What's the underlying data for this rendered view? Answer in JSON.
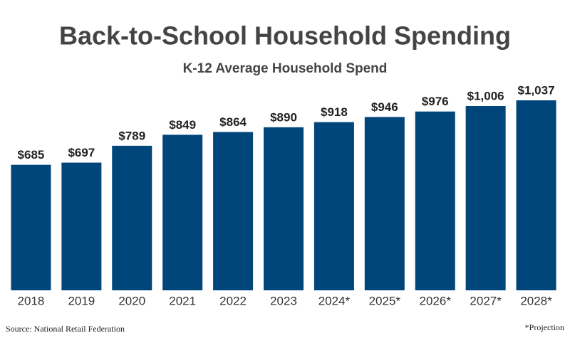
{
  "chart_data": {
    "type": "bar",
    "title": "Back-to-School Household Spending",
    "subtitle": "K-12 Average Household Spend",
    "categories": [
      "2018",
      "2019",
      "2020",
      "2021",
      "2022",
      "2023",
      "2024*",
      "2025*",
      "2026*",
      "2027*",
      "2028*"
    ],
    "values": [
      685,
      697,
      789,
      849,
      864,
      890,
      918,
      946,
      976,
      1006,
      1037
    ],
    "value_labels": [
      "$685",
      "$697",
      "$789",
      "$849",
      "$864",
      "$890",
      "$918",
      "$946",
      "$976",
      "$1,006",
      "$1,037"
    ],
    "color": "#00467a",
    "source": "Source: National Retail Federation",
    "footnote": "*Projection"
  }
}
